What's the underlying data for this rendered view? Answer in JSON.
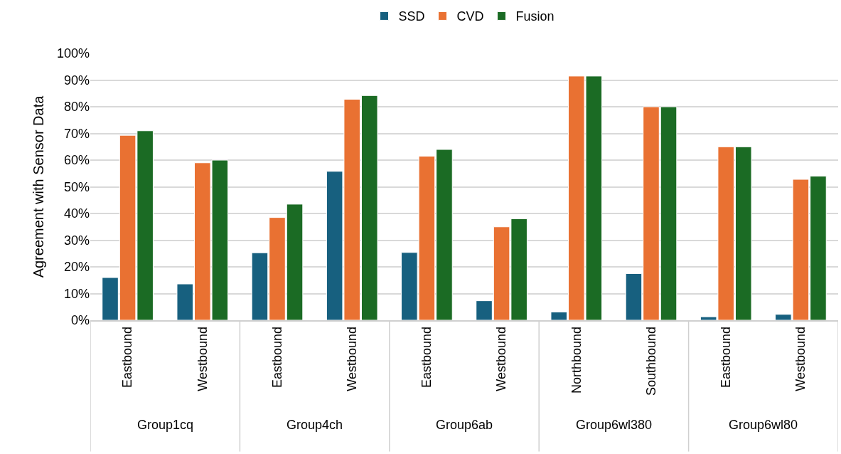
{
  "chart_data": {
    "type": "bar",
    "ylabel": "Agreement with Sensor Data",
    "categories": [
      "Eastbound",
      "Westbound",
      "Eastbound",
      "Westbound",
      "Eastbound",
      "Westbound",
      "Northbound",
      "Southbound",
      "Eastbound",
      "Westbound"
    ],
    "series": [
      {
        "name": "SSD",
        "color": "#17607f",
        "values": [
          16,
          13.6,
          25.3,
          55.8,
          25.4,
          7.3,
          3.1,
          17.5,
          1.3,
          2.2
        ]
      },
      {
        "name": "CVD",
        "color": "#e97132",
        "values": [
          69.3,
          59,
          38.5,
          82.8,
          61.5,
          35,
          91.5,
          80,
          65,
          52.8
        ]
      },
      {
        "name": "Fusion",
        "color": "#1b6b24",
        "values": [
          71,
          60,
          43.5,
          84.2,
          64,
          38,
          91.5,
          80,
          65,
          54
        ]
      }
    ],
    "annotations": [
      "Group1cq",
      "Group4ch",
      "Group6ab",
      "Group6wl380",
      "Group6wl80"
    ],
    "ylim": [
      0,
      100
    ],
    "yticks": [
      {
        "value": 0,
        "label": "0%"
      },
      {
        "value": 10,
        "label": "10%"
      },
      {
        "value": 20,
        "label": "20%"
      },
      {
        "value": 30,
        "label": "30%"
      },
      {
        "value": 40,
        "label": "40%"
      },
      {
        "value": 50,
        "label": "50%"
      },
      {
        "value": 60,
        "label": "60%"
      },
      {
        "value": 70,
        "label": "70%"
      },
      {
        "value": 80,
        "label": "80%"
      },
      {
        "value": 90,
        "label": "90%"
      },
      {
        "value": 100,
        "label": "100%"
      }
    ],
    "grid": "y",
    "legend": "top"
  }
}
